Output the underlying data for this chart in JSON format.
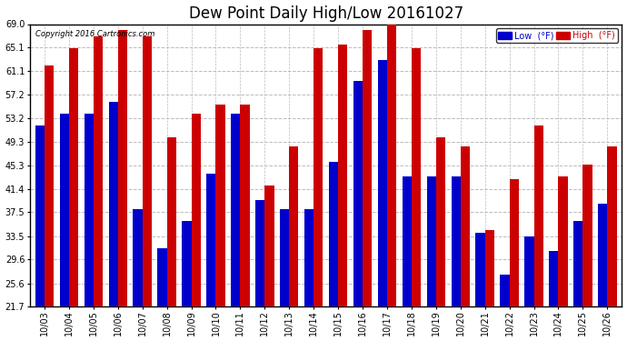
{
  "title": "Dew Point Daily High/Low 20161027",
  "copyright": "Copyright 2016 Cartronics.com",
  "dates": [
    "10/03",
    "10/04",
    "10/05",
    "10/06",
    "10/07",
    "10/08",
    "10/09",
    "10/10",
    "10/11",
    "10/12",
    "10/13",
    "10/14",
    "10/15",
    "10/16",
    "10/17",
    "10/18",
    "10/19",
    "10/20",
    "10/21",
    "10/22",
    "10/23",
    "10/24",
    "10/25",
    "10/26"
  ],
  "high": [
    62.0,
    65.0,
    67.0,
    68.0,
    67.0,
    50.0,
    54.0,
    55.5,
    55.5,
    42.0,
    48.5,
    65.0,
    65.5,
    68.0,
    69.5,
    65.0,
    50.0,
    48.5,
    34.5,
    43.0,
    52.0,
    43.5,
    45.5,
    48.5
  ],
  "low": [
    52.0,
    54.0,
    54.0,
    56.0,
    38.0,
    31.5,
    36.0,
    44.0,
    54.0,
    39.5,
    38.0,
    38.0,
    46.0,
    59.5,
    63.0,
    43.5,
    43.5,
    43.5,
    34.0,
    27.0,
    33.5,
    31.0,
    36.0,
    39.0
  ],
  "yticks": [
    21.7,
    25.6,
    29.6,
    33.5,
    37.5,
    41.4,
    45.3,
    49.3,
    53.2,
    57.2,
    61.1,
    65.1,
    69.0
  ],
  "ymin": 21.7,
  "ymax": 69.0,
  "bar_width": 0.38,
  "blue_color": "#0000cc",
  "red_color": "#cc0000",
  "bg_color": "#ffffff",
  "grid_color": "#bbbbbb",
  "title_fontsize": 12,
  "legend_blue_label": "Low  (°F)",
  "legend_red_label": "High  (°F)"
}
